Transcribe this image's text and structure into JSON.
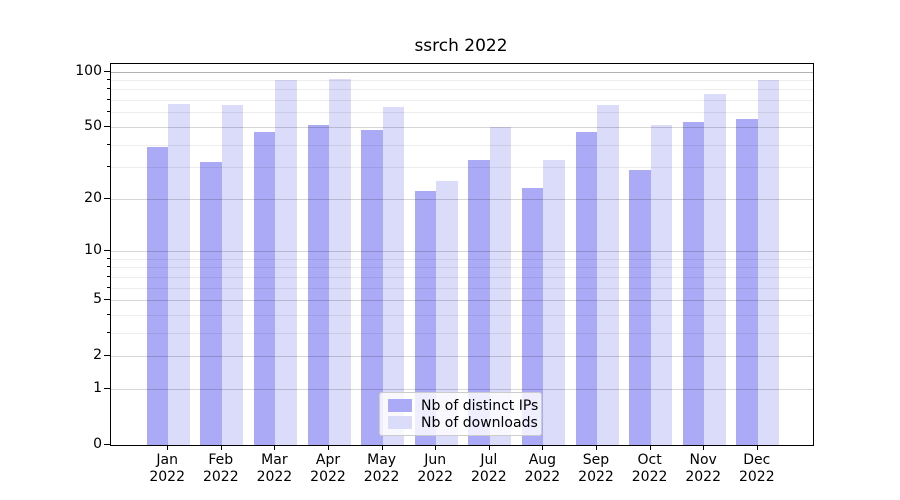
{
  "title": "ssrch 2022",
  "chart_data": {
    "type": "bar",
    "title": "ssrch 2022",
    "categories": [
      "Jan 2022",
      "Feb 2022",
      "Mar 2022",
      "Apr 2022",
      "May 2022",
      "Jun 2022",
      "Jul 2022",
      "Aug 2022",
      "Sep 2022",
      "Oct 2022",
      "Nov 2022",
      "Dec 2022"
    ],
    "x_tick_month": [
      "Jan",
      "Feb",
      "Mar",
      "Apr",
      "May",
      "Jun",
      "Jul",
      "Aug",
      "Sep",
      "Oct",
      "Nov",
      "Dec"
    ],
    "x_tick_year": "2022",
    "series": [
      {
        "name": "Nb of distinct IPs",
        "color": "#aaaaf7",
        "values": [
          39,
          32,
          47,
          51,
          48,
          22,
          33,
          23,
          47,
          29,
          53,
          55
        ]
      },
      {
        "name": "Nb of downloads",
        "color": "#dbdbfa",
        "values": [
          67,
          66,
          90,
          91,
          64,
          25,
          50,
          33,
          66,
          51,
          76,
          90
        ]
      }
    ],
    "yscale": "log1p",
    "ylim": [
      0,
      110
    ],
    "yticks": [
      0,
      1,
      2,
      5,
      10,
      20,
      50,
      100
    ],
    "ytick_labels": [
      "0",
      "1",
      "2",
      "5",
      "10",
      "20",
      "50",
      "100"
    ],
    "yticks_minor": [
      3,
      4,
      6,
      7,
      8,
      9,
      30,
      40,
      60,
      70,
      80,
      90
    ],
    "grid": "both",
    "legend_position": "lower center",
    "xlabel": "",
    "ylabel": ""
  }
}
